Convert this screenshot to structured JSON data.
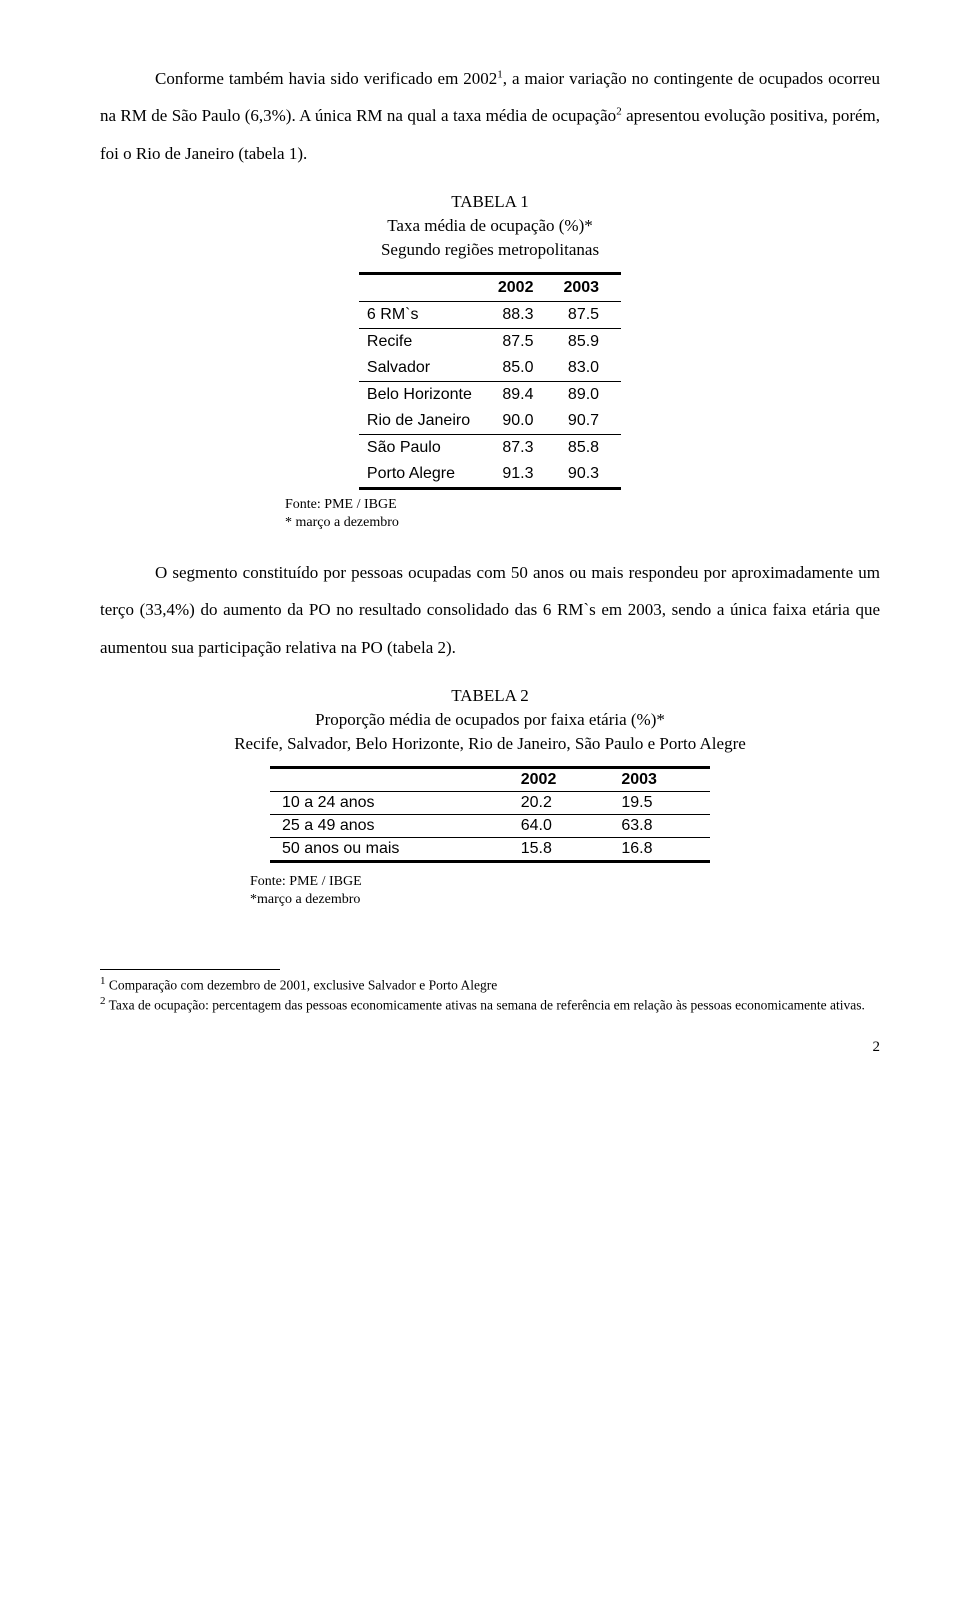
{
  "para1": {
    "a": "Conforme também havia sido verificado em 2002",
    "sup1": "1",
    "b": ", a maior variação no contingente de ocupados ocorreu na RM de São Paulo (6,3%). A única RM na qual a taxa média de ocupação",
    "sup2": "2",
    "c": " apresentou evolução positiva, porém, foi o Rio de Janeiro (tabela 1)."
  },
  "table1": {
    "title_l1": "TABELA 1",
    "title_l2": "Taxa média de ocupação (%)*",
    "title_l3": "Segundo regiões metropolitanas",
    "h1": "2002",
    "h2": "2003",
    "rows": [
      {
        "label": "6 RM`s",
        "c1": "88.3",
        "c2": "87.5"
      },
      {
        "label": "Recife",
        "c1": "87.5",
        "c2": "85.9"
      },
      {
        "label": "Salvador",
        "c1": "85.0",
        "c2": "83.0"
      },
      {
        "label": "Belo Horizonte",
        "c1": "89.4",
        "c2": "89.0"
      },
      {
        "label": "Rio de Janeiro",
        "c1": "90.0",
        "c2": "90.7"
      },
      {
        "label": "São Paulo",
        "c1": "87.3",
        "c2": "85.8"
      },
      {
        "label": "Porto Alegre",
        "c1": "91.3",
        "c2": "90.3"
      }
    ],
    "caption_l1": "Fonte: PME / IBGE",
    "caption_l2": "* março a dezembro"
  },
  "para2": "O segmento constituído por pessoas ocupadas com 50 anos ou mais respondeu por aproximadamente um terço (33,4%) do aumento da PO no resultado consolidado das 6 RM`s em 2003, sendo a única faixa etária que aumentou sua participação relativa na PO (tabela 2).",
  "table2": {
    "title_l1": "TABELA 2",
    "title_l2": "Proporção média de ocupados por faixa etária (%)*",
    "title_l3": "Recife, Salvador, Belo Horizonte, Rio de Janeiro, São Paulo e Porto Alegre",
    "h1": "2002",
    "h2": "2003",
    "rows": [
      {
        "label": "10 a 24 anos",
        "c1": "20.2",
        "c2": "19.5"
      },
      {
        "label": "25 a 49 anos",
        "c1": "64.0",
        "c2": "63.8"
      },
      {
        "label": "50 anos ou mais",
        "c1": "15.8",
        "c2": "16.8"
      }
    ],
    "caption_l1": "Fonte: PME / IBGE",
    "caption_l2": "*março a dezembro"
  },
  "footnotes": {
    "f1_sup": "1",
    "f1": " Comparação com dezembro de 2001, exclusive Salvador e Porto Alegre",
    "f2_sup": "2",
    "f2": " Taxa de ocupação: percentagem das pessoas economicamente ativas na semana de referência em relação às pessoas economicamente ativas."
  },
  "pagenum": "2"
}
